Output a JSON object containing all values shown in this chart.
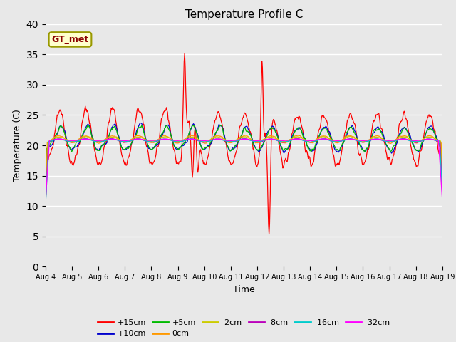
{
  "title": "Temperature Profile C",
  "xlabel": "Time",
  "ylabel": "Temperature (C)",
  "ylim": [
    0,
    40
  ],
  "yticks": [
    0,
    5,
    10,
    15,
    20,
    25,
    30,
    35,
    40
  ],
  "facecolor": "#e8e8e8",
  "fig_facecolor": "#e8e8e8",
  "legend_label": "GT_met",
  "legend_label_color": "#8B0000",
  "legend_box_facecolor": "#ffffcc",
  "legend_box_edgecolor": "#999900",
  "series_labels": [
    "+15cm",
    "+10cm",
    "+5cm",
    "0cm",
    "-2cm",
    "-8cm",
    "-16cm",
    "-32cm"
  ],
  "series_colors": [
    "#ff0000",
    "#0000cc",
    "#00bb00",
    "#ff9900",
    "#cccc00",
    "#bb00bb",
    "#00cccc",
    "#ff00ff"
  ],
  "n_days": 15,
  "n_points": 720,
  "seed": 42
}
